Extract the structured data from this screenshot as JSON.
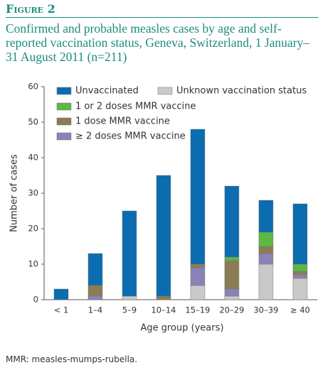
{
  "header": "Figure 2",
  "chart_data": {
    "type": "stacked_bar",
    "title": "Confirmed and probable measles cases by age and self-reported vaccination status, Geneva, Switzerland, 1 January–31 August 2011 (n=211)",
    "categories": [
      "< 1",
      "1–4",
      "5–9",
      "10–14",
      "15–19",
      "20–29",
      "30–39",
      "≥ 40"
    ],
    "series": [
      {
        "name": "Unknown vaccination status",
        "color": "#c9c9c9",
        "values": [
          0,
          0,
          1,
          0,
          4,
          1,
          10,
          6
        ]
      },
      {
        "name": "≥ 2 doses MMR vaccine",
        "color": "#8a83b8",
        "values": [
          0,
          1,
          0,
          0,
          5,
          2,
          3,
          1
        ]
      },
      {
        "name": "1 dose MMR vaccine",
        "color": "#8b7d52",
        "values": [
          0,
          3,
          0,
          1,
          1,
          8,
          2,
          1
        ]
      },
      {
        "name": "1 or 2 doses MMR vaccine",
        "color": "#5bb846",
        "values": [
          0,
          0,
          0,
          0,
          0,
          1,
          4,
          2
        ]
      },
      {
        "name": "Unvaccinated",
        "color": "#0b6db0",
        "values": [
          3,
          9,
          24,
          34,
          38,
          20,
          9,
          17
        ]
      }
    ],
    "ylim": [
      0,
      60
    ],
    "yticks": [
      0,
      10,
      20,
      30,
      40,
      50,
      60
    ],
    "xlabel": "Age group (years)",
    "ylabel": "Number of cases"
  },
  "footnote": "MMR: measles-mumps-rubella."
}
